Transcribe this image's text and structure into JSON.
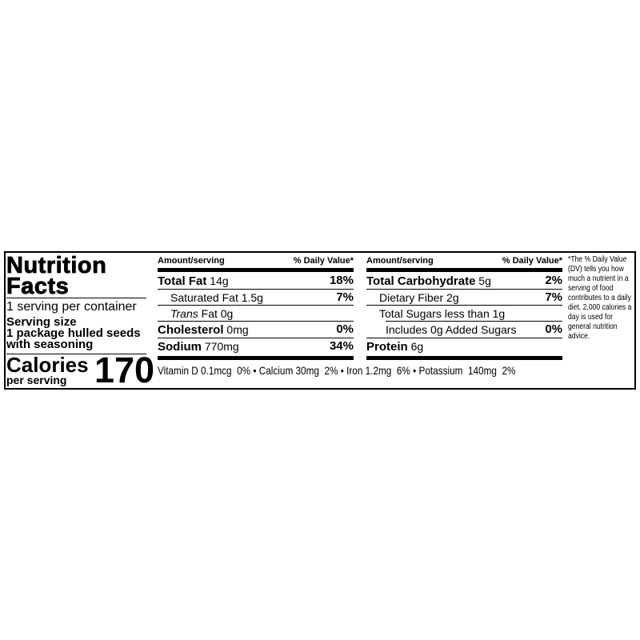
{
  "title_line1": "Nutrition",
  "title_line2": "Facts",
  "servings": "1 serving per container",
  "serving_size_label": "Serving size",
  "serving_size_line1": "1 package hulled seeds",
  "serving_size_line2": "with seasoning",
  "calories_label": "Calories",
  "per_serving": "per serving",
  "calories": "170",
  "left_table": {
    "header_amount": "Amount/serving",
    "header_dv": "% Daily Value*",
    "rows": [
      {
        "name": "Total Fat",
        "amount": "14g",
        "dv": "18%"
      },
      {
        "name": "Saturated Fat",
        "amount": "1.5g",
        "dv": "7%"
      },
      {
        "name": "Trans",
        "amount": "Fat 0g",
        "dv": ""
      },
      {
        "name": "Cholesterol",
        "amount": "0mg",
        "dv": "0%"
      },
      {
        "name": "Sodium",
        "amount": "770mg",
        "dv": "34%"
      }
    ]
  },
  "right_table": {
    "header_amount": "Amount/serving",
    "header_dv": "% Daily Value*",
    "rows": [
      {
        "name": "Total Carbohydrate",
        "amount": "5g",
        "dv": "2%"
      },
      {
        "name": "Dietary Fiber",
        "amount": "2g",
        "dv": "7%"
      },
      {
        "name": "Total Sugars",
        "amount": "less than 1g",
        "dv": ""
      },
      {
        "name": "Includes 0g Added Sugars",
        "amount": "",
        "dv": "0%"
      },
      {
        "name": "Protein",
        "amount": "6g",
        "dv": ""
      }
    ]
  },
  "vitamins": "Vitamin D 0.1mcg  0% • Calcium 30mg  2% • Iron 1.2mg  6% • Potassium  140mg  2%",
  "footnote": "*The % Daily Value (DV) tells you how much a nutrient in a serving of food contributes to a daily diet. 2,000 calories a day is used for general nutrition advice."
}
